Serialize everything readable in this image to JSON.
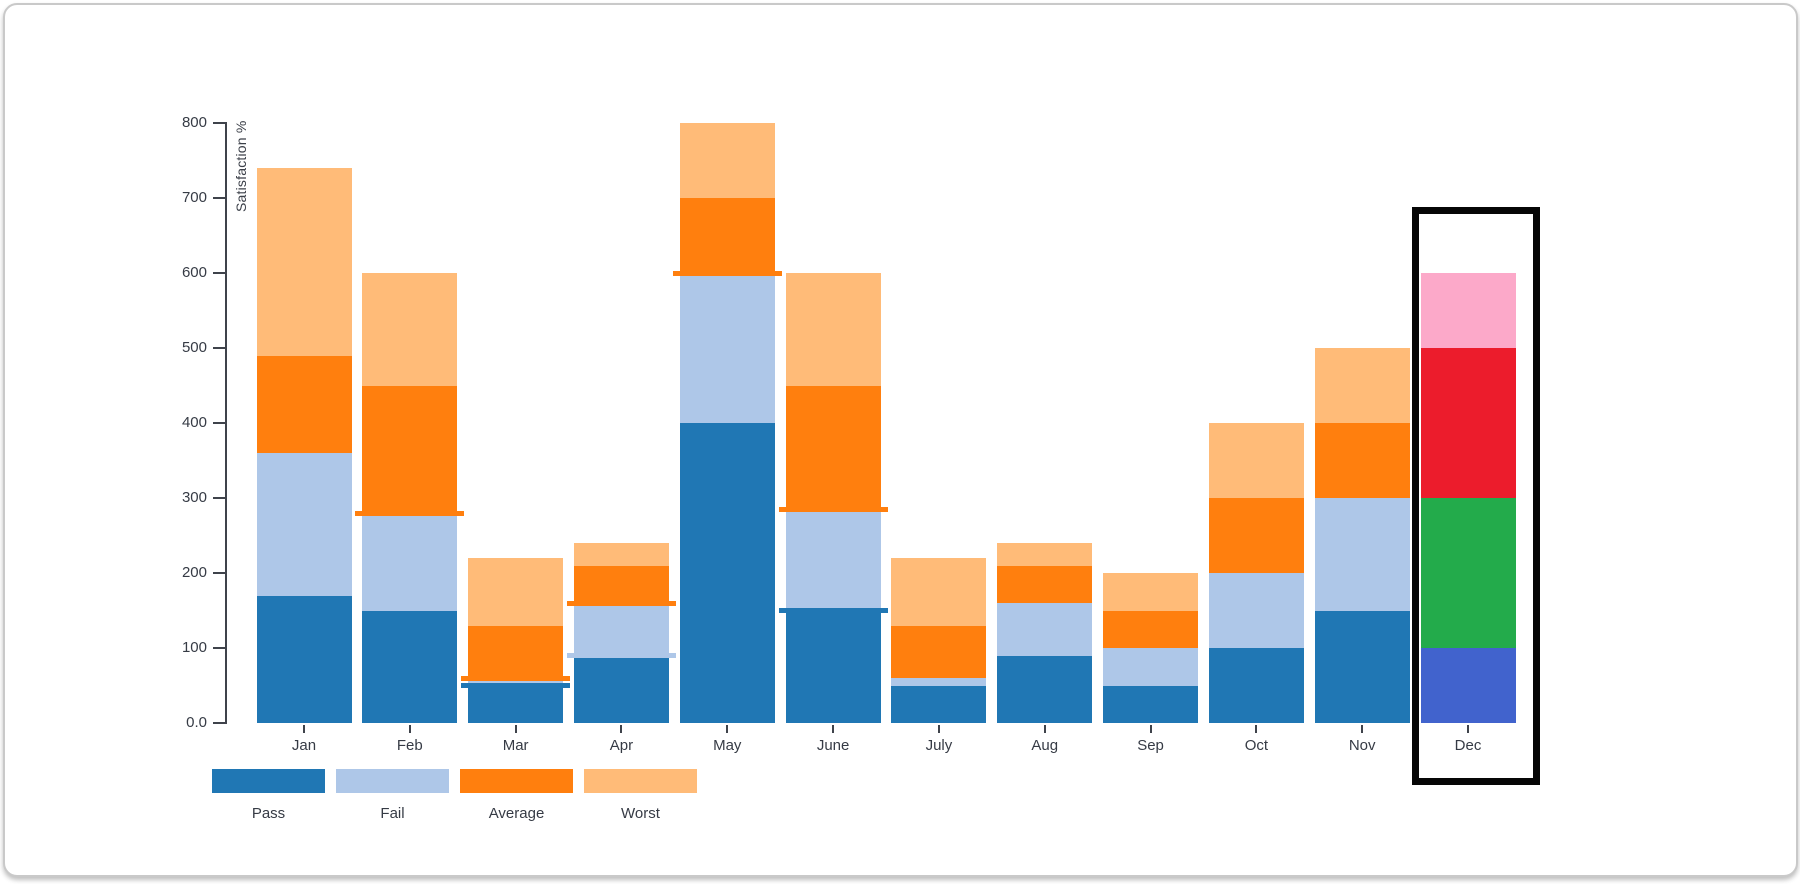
{
  "chart_data": {
    "type": "bar",
    "stacked": true,
    "title": "",
    "ylabel": "Satisfaction %",
    "xlabel": "",
    "ylim": [
      0,
      800
    ],
    "grid": false,
    "y_tick_labels": [
      "0.0",
      "100",
      "200",
      "300",
      "400",
      "500",
      "600",
      "700",
      "800"
    ],
    "categories": [
      "Jan",
      "Feb",
      "Mar",
      "Apr",
      "May",
      "June",
      "July",
      "Aug",
      "Sep",
      "Oct",
      "Nov",
      "Dec"
    ],
    "series": [
      {
        "name": "Pass",
        "color": "#2077b4",
        "values": [
          170,
          150,
          50,
          90,
          400,
          150,
          50,
          90,
          50,
          100,
          150,
          100
        ]
      },
      {
        "name": "Fail",
        "color": "#aec7e8",
        "values": [
          190,
          130,
          10,
          70,
          200,
          135,
          10,
          70,
          50,
          100,
          150,
          200
        ]
      },
      {
        "name": "Average",
        "color": "#ff7f0e",
        "values": [
          130,
          170,
          70,
          50,
          100,
          165,
          70,
          50,
          50,
          100,
          100,
          200
        ]
      },
      {
        "name": "Worst",
        "color": "#ffbb78",
        "values": [
          250,
          150,
          90,
          30,
          100,
          150,
          90,
          30,
          50,
          100,
          100,
          100
        ]
      }
    ],
    "december_custom_colors": [
      "#4163cd",
      "#23ab4b",
      "#ec1c2c",
      "#fca9c9"
    ],
    "highlight": {
      "category": "Dec",
      "stroke_color": "#060606"
    },
    "boundary_dashes": [
      {
        "category": "Feb",
        "value": 280,
        "series": "Average"
      },
      {
        "category": "Mar",
        "value": 50,
        "series": "Pass"
      },
      {
        "category": "Mar",
        "value": 60,
        "series": "Average"
      },
      {
        "category": "Apr",
        "value": 90,
        "series": "Fail"
      },
      {
        "category": "Apr",
        "value": 160,
        "series": "Average"
      },
      {
        "category": "May",
        "value": 600,
        "series": "Average"
      },
      {
        "category": "June",
        "value": 150,
        "series": "Pass"
      },
      {
        "category": "June",
        "value": 285,
        "series": "Average"
      }
    ],
    "legend": {
      "position": "bottom-left",
      "items": [
        {
          "label": "Pass",
          "color": "#2077b4"
        },
        {
          "label": "Fail",
          "color": "#aec7e8"
        },
        {
          "label": "Average",
          "color": "#ff7f0e"
        },
        {
          "label": "Worst",
          "color": "#ffbb78"
        }
      ]
    }
  }
}
